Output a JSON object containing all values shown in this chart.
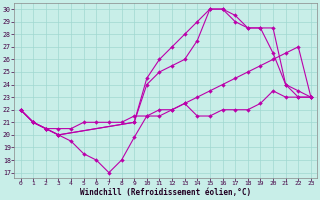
{
  "xlabel": "Windchill (Refroidissement éolien,°C)",
  "bg_color": "#c8eee8",
  "line_color": "#bb00aa",
  "grid_color": "#a0d8d0",
  "xlim_min": -0.5,
  "xlim_max": 23.5,
  "ylim_min": 16.6,
  "ylim_max": 30.5,
  "xticks": [
    0,
    1,
    2,
    3,
    4,
    5,
    6,
    7,
    8,
    9,
    10,
    11,
    12,
    13,
    14,
    15,
    16,
    17,
    18,
    19,
    20,
    21,
    22,
    23
  ],
  "yticks": [
    17,
    18,
    19,
    20,
    21,
    22,
    23,
    24,
    25,
    26,
    27,
    28,
    29,
    30
  ],
  "lines": [
    {
      "x": [
        0,
        1,
        2,
        3,
        4,
        5,
        6,
        7,
        8,
        9,
        10,
        11,
        12,
        13,
        14,
        15,
        16,
        17,
        18,
        19,
        20,
        21,
        22,
        23
      ],
      "y": [
        22,
        21,
        20.5,
        20,
        19.5,
        18.5,
        18,
        17,
        18,
        19.8,
        21.5,
        21.5,
        22,
        22.5,
        21.5,
        21.5,
        22,
        22,
        22,
        22.5,
        23.5,
        23,
        23,
        23
      ]
    },
    {
      "x": [
        0,
        1,
        2,
        3,
        4,
        5,
        6,
        7,
        8,
        9,
        10,
        11,
        12,
        13,
        14,
        15,
        16,
        17,
        18,
        19,
        20,
        21,
        22,
        23
      ],
      "y": [
        22,
        21,
        20.5,
        20.5,
        20.5,
        21,
        21,
        21,
        21,
        21.5,
        21.5,
        22,
        22,
        22.5,
        23,
        23.5,
        24,
        24.5,
        25,
        25.5,
        26,
        26.5,
        27,
        23
      ]
    },
    {
      "x": [
        0,
        1,
        2,
        3,
        9,
        10,
        11,
        12,
        13,
        14,
        15,
        16,
        17,
        18,
        19,
        20,
        21,
        22,
        23
      ],
      "y": [
        22,
        21,
        20.5,
        20,
        21,
        24,
        25,
        25.5,
        26,
        27.5,
        30,
        30,
        29,
        28.5,
        28.5,
        26.5,
        24,
        23,
        23
      ]
    },
    {
      "x": [
        0,
        1,
        2,
        3,
        9,
        10,
        11,
        12,
        13,
        14,
        15,
        16,
        17,
        18,
        19,
        20,
        21,
        22,
        23
      ],
      "y": [
        22,
        21,
        20.5,
        20,
        21,
        24.5,
        26,
        27,
        28,
        29,
        30,
        30,
        29.5,
        28.5,
        28.5,
        28.5,
        24,
        23.5,
        23
      ]
    }
  ]
}
